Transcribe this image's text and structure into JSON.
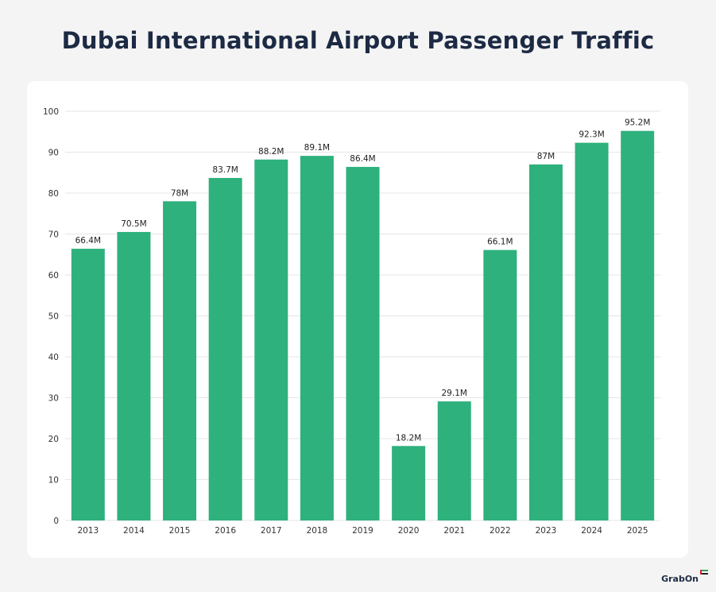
{
  "title": "Dubai International Airport Passenger Traffic",
  "brand": {
    "name": "GrabOn",
    "logo_icon": "grabon-logo-icon"
  },
  "colors": {
    "bar": "#2eb17d",
    "title": "#1d2a44",
    "grid": "#e6e6e6",
    "background": "#f4f4f4",
    "card": "#ffffff"
  },
  "chart_data": {
    "type": "bar",
    "title": "Dubai International Airport Passenger Traffic",
    "xlabel": "",
    "ylabel": "",
    "categories": [
      "2013",
      "2014",
      "2015",
      "2016",
      "2017",
      "2018",
      "2019",
      "2020",
      "2021",
      "2022",
      "2023",
      "2024",
      "2025"
    ],
    "values": [
      66.4,
      70.5,
      78,
      83.7,
      88.2,
      89.1,
      86.4,
      18.2,
      29.1,
      66.1,
      87,
      92.3,
      95.2
    ],
    "data_labels": [
      "66.4M",
      "70.5M",
      "78M",
      "83.7M",
      "88.2M",
      "89.1M",
      "86.4M",
      "18.2M",
      "29.1M",
      "66.1M",
      "87M",
      "92.3M",
      "95.2M"
    ],
    "ylim": [
      0,
      100
    ],
    "yticks": [
      0,
      10,
      20,
      30,
      40,
      50,
      60,
      70,
      80,
      90,
      100
    ],
    "grid": true,
    "legend": "none"
  }
}
